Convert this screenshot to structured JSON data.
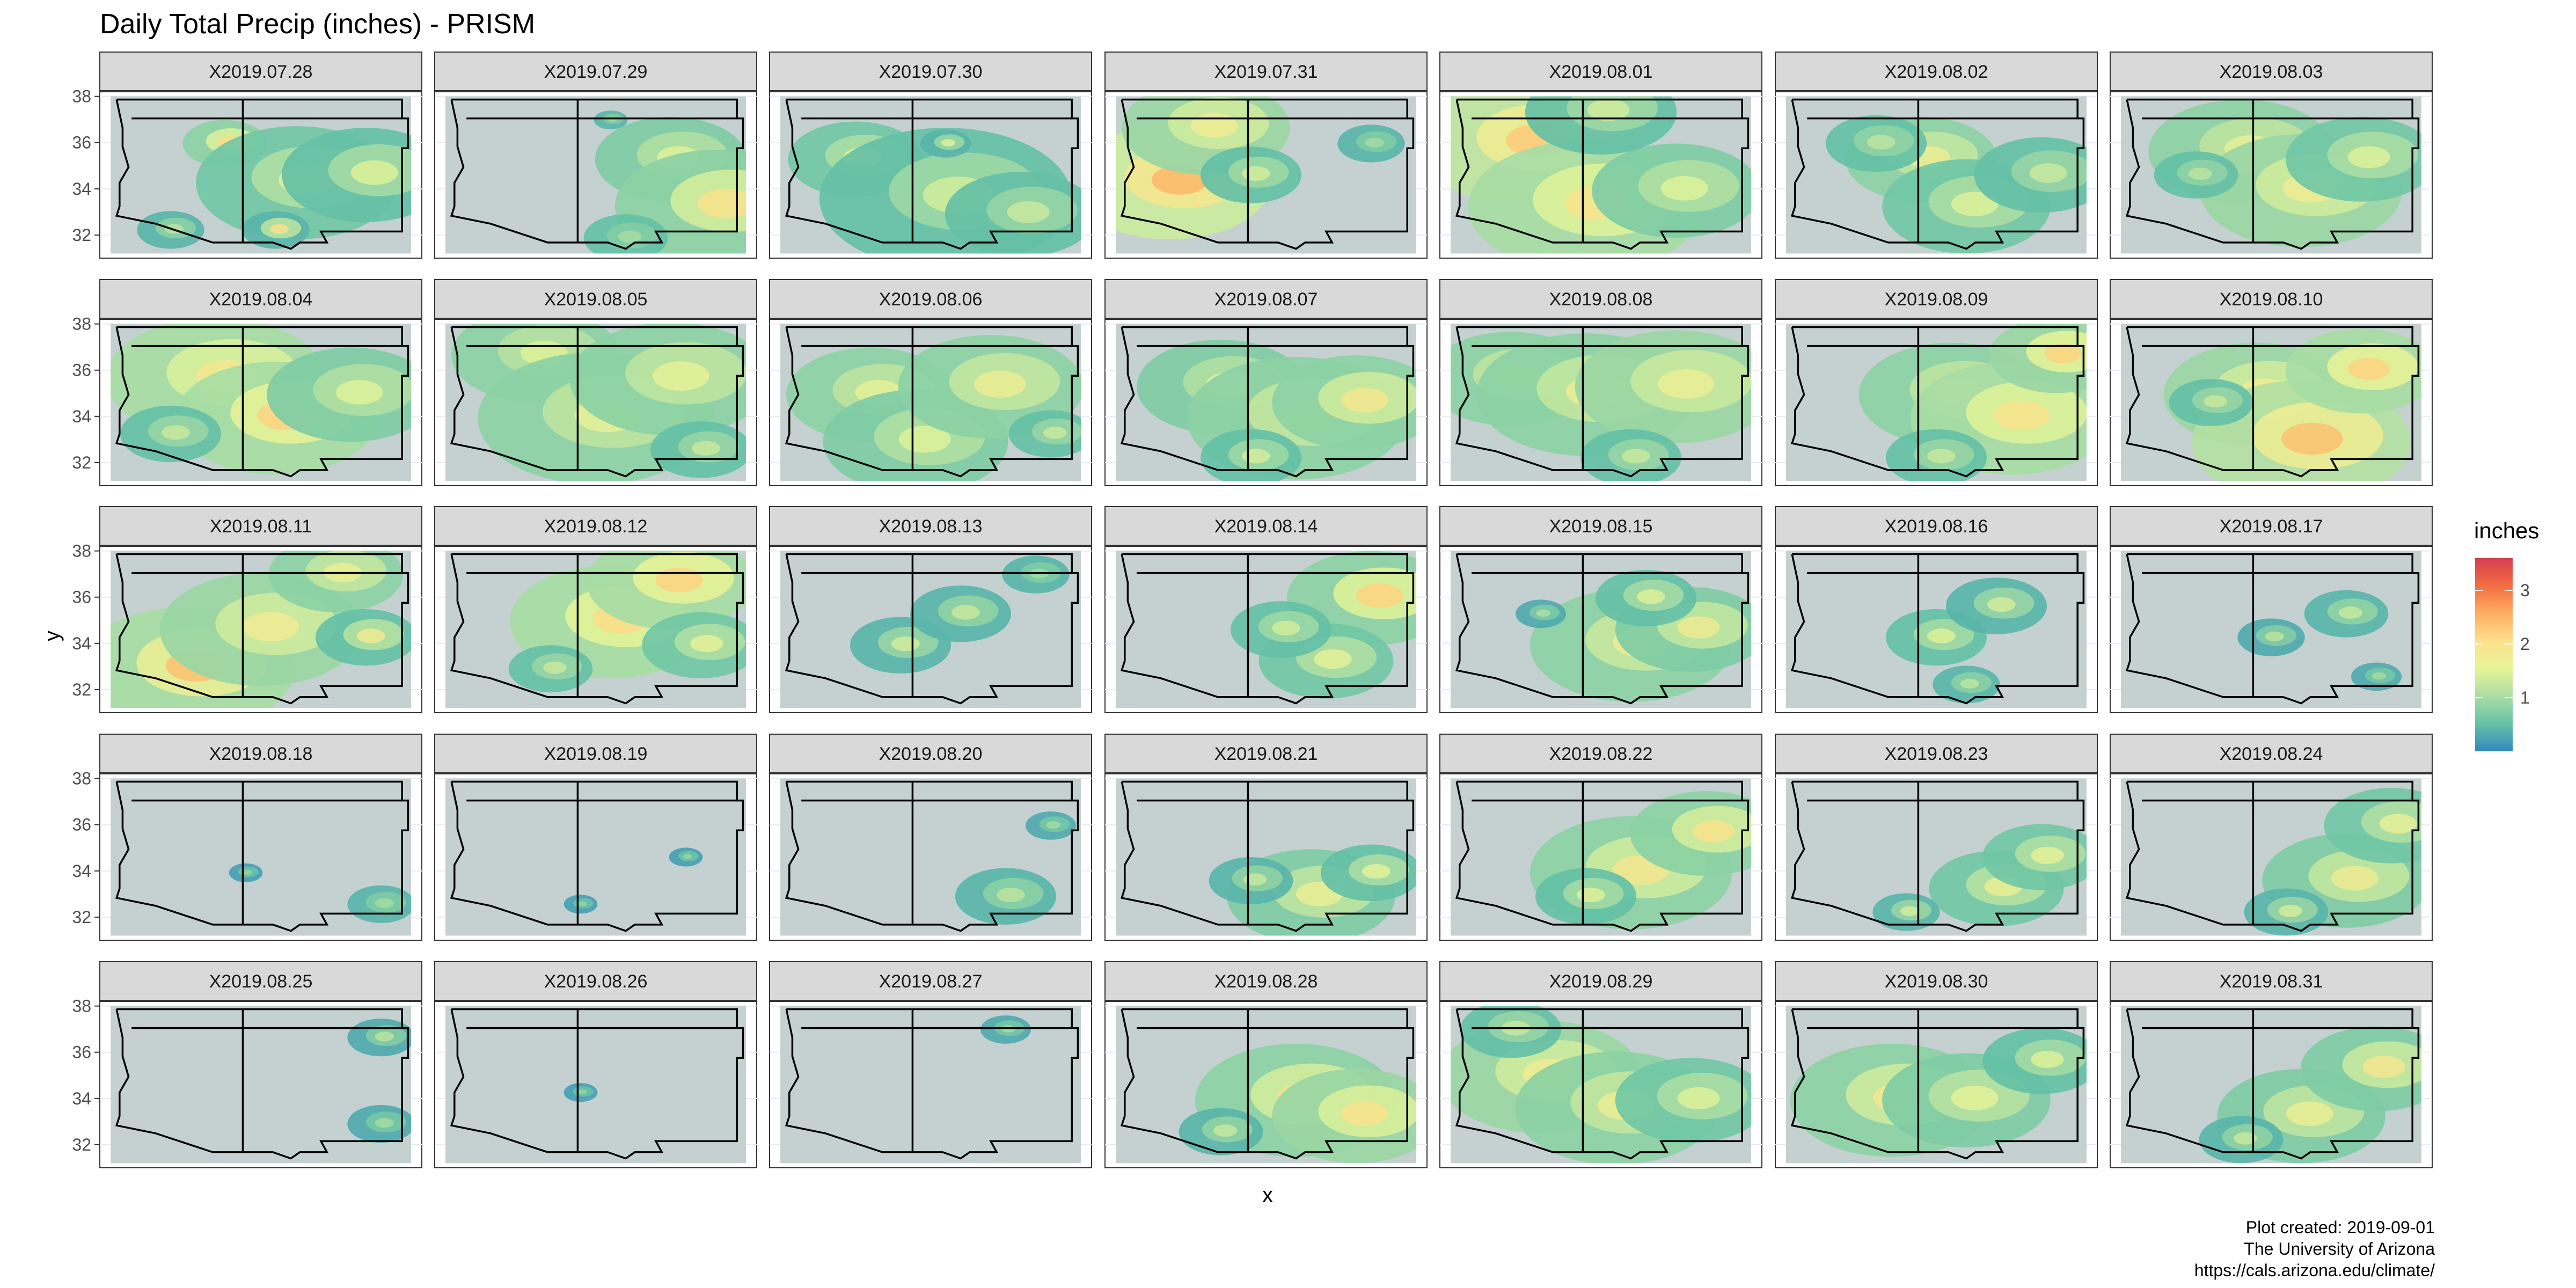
{
  "chart_data": {
    "type": "heatmap",
    "title": "Daily Total Precip (inches) - PRISM",
    "xlabel": "x",
    "ylabel": "y",
    "y_ticks": [
      32,
      34,
      36,
      38
    ],
    "ylim": [
      31,
      38.2
    ],
    "x_tick_labels_shown": false,
    "facets": [
      "X2019.07.28",
      "X2019.07.29",
      "X2019.07.30",
      "X2019.07.31",
      "X2019.08.01",
      "X2019.08.02",
      "X2019.08.03",
      "X2019.08.04",
      "X2019.08.05",
      "X2019.08.06",
      "X2019.08.07",
      "X2019.08.08",
      "X2019.08.09",
      "X2019.08.10",
      "X2019.08.11",
      "X2019.08.12",
      "X2019.08.13",
      "X2019.08.14",
      "X2019.08.15",
      "X2019.08.16",
      "X2019.08.17",
      "X2019.08.18",
      "X2019.08.19",
      "X2019.08.20",
      "X2019.08.21",
      "X2019.08.22",
      "X2019.08.23",
      "X2019.08.24",
      "X2019.08.25",
      "X2019.08.26",
      "X2019.08.27",
      "X2019.08.28",
      "X2019.08.29",
      "X2019.08.30",
      "X2019.08.31"
    ],
    "facet_rows": 5,
    "facet_cols": 7,
    "legend": {
      "title": "inches",
      "ticks": [
        1,
        2,
        3
      ],
      "range": [
        0,
        3.6
      ],
      "colors": [
        "#3288bd",
        "#66c2a5",
        "#abdda4",
        "#e6f598",
        "#fee08b",
        "#fdae61",
        "#f46d43",
        "#d53e4f"
      ],
      "position": "right"
    },
    "background_color": "#c5d1d1",
    "precip_blobs": [
      [
        [
          0.38,
          0.3,
          0.5,
          2.1,
          0.8
        ],
        [
          0.62,
          0.55,
          1.2,
          1.6,
          0.6
        ],
        [
          0.55,
          0.85,
          0.4,
          2.0,
          0.4
        ],
        [
          0.85,
          0.5,
          1.0,
          1.5,
          0.5
        ],
        [
          0.2,
          0.85,
          0.4,
          1.2,
          0.4
        ]
      ],
      [
        [
          0.75,
          0.4,
          0.9,
          1.5,
          0.7
        ],
        [
          0.9,
          0.7,
          1.2,
          2.0,
          0.8
        ],
        [
          0.55,
          0.15,
          0.2,
          1.0,
          0.4
        ],
        [
          0.6,
          0.9,
          0.5,
          1.0,
          0.5
        ]
      ],
      [
        [
          0.25,
          0.4,
          0.8,
          1.5,
          0.6
        ],
        [
          0.55,
          0.65,
          1.5,
          1.4,
          0.5
        ],
        [
          0.8,
          0.75,
          0.9,
          1.3,
          0.5
        ],
        [
          0.55,
          0.3,
          0.3,
          1.5,
          0.4
        ]
      ],
      [
        [
          0.18,
          0.55,
          1.2,
          2.5,
          1.3
        ],
        [
          0.3,
          0.2,
          1.0,
          1.8,
          0.9
        ],
        [
          0.45,
          0.5,
          0.6,
          1.4,
          0.5
        ],
        [
          0.85,
          0.3,
          0.4,
          1.0,
          0.4
        ]
      ],
      [
        [
          0.25,
          0.3,
          1.3,
          2.3,
          1.2
        ],
        [
          0.45,
          0.7,
          1.4,
          2.0,
          1.0
        ],
        [
          0.75,
          0.6,
          1.0,
          1.5,
          0.7
        ],
        [
          0.5,
          0.1,
          0.9,
          1.4,
          0.5
        ]
      ],
      [
        [
          0.45,
          0.4,
          0.9,
          1.7,
          0.8
        ],
        [
          0.6,
          0.7,
          1.0,
          1.5,
          0.6
        ],
        [
          0.85,
          0.5,
          0.8,
          1.3,
          0.5
        ],
        [
          0.3,
          0.3,
          0.6,
          1.2,
          0.5
        ]
      ],
      [
        [
          0.4,
          0.35,
          1.1,
          1.6,
          0.8
        ],
        [
          0.6,
          0.6,
          1.2,
          1.8,
          0.9
        ],
        [
          0.8,
          0.4,
          0.9,
          1.5,
          0.6
        ],
        [
          0.25,
          0.5,
          0.5,
          1.2,
          0.5
        ]
      ],
      [
        [
          0.35,
          0.35,
          1.3,
          1.9,
          1.0
        ],
        [
          0.55,
          0.6,
          1.2,
          2.2,
          1.0
        ],
        [
          0.8,
          0.45,
          1.0,
          1.5,
          0.7
        ],
        [
          0.2,
          0.7,
          0.6,
          1.3,
          0.5
        ]
      ],
      [
        [
          0.3,
          0.2,
          1.0,
          1.5,
          0.8
        ],
        [
          0.5,
          0.6,
          1.4,
          1.6,
          0.8
        ],
        [
          0.75,
          0.35,
          1.2,
          1.6,
          0.8
        ],
        [
          0.85,
          0.8,
          0.6,
          1.3,
          0.5
        ]
      ],
      [
        [
          0.3,
          0.45,
          1.0,
          1.6,
          0.8
        ],
        [
          0.45,
          0.75,
          1.1,
          1.5,
          0.7
        ],
        [
          0.7,
          0.4,
          1.1,
          1.7,
          0.8
        ],
        [
          0.9,
          0.7,
          0.5,
          1.3,
          0.5
        ]
      ],
      [
        [
          0.35,
          0.4,
          1.0,
          1.5,
          0.7
        ],
        [
          0.6,
          0.6,
          1.3,
          1.7,
          0.8
        ],
        [
          0.8,
          0.5,
          1.0,
          1.9,
          0.8
        ],
        [
          0.45,
          0.85,
          0.6,
          1.4,
          0.5
        ]
      ],
      [
        [
          0.2,
          0.35,
          1.0,
          1.6,
          0.8
        ],
        [
          0.45,
          0.45,
          1.3,
          1.7,
          0.8
        ],
        [
          0.75,
          0.4,
          1.2,
          1.7,
          0.9
        ],
        [
          0.6,
          0.85,
          0.6,
          1.3,
          0.5
        ]
      ],
      [
        [
          0.55,
          0.45,
          1.1,
          1.6,
          0.8
        ],
        [
          0.75,
          0.6,
          1.2,
          2.0,
          1.0
        ],
        [
          0.9,
          0.2,
          0.8,
          2.2,
          0.9
        ],
        [
          0.5,
          0.85,
          0.6,
          1.3,
          0.5
        ]
      ],
      [
        [
          0.45,
          0.45,
          1.1,
          1.8,
          0.9
        ],
        [
          0.6,
          0.75,
          1.3,
          2.4,
          1.1
        ],
        [
          0.8,
          0.3,
          0.9,
          2.2,
          1.0
        ],
        [
          0.3,
          0.5,
          0.5,
          1.3,
          0.5
        ]
      ],
      [
        [
          0.25,
          0.75,
          1.3,
          2.4,
          1.0
        ],
        [
          0.5,
          0.5,
          1.2,
          1.8,
          0.9
        ],
        [
          0.75,
          0.15,
          0.8,
          1.7,
          0.8
        ],
        [
          0.85,
          0.55,
          0.6,
          1.8,
          0.5
        ]
      ],
      [
        [
          0.55,
          0.45,
          1.2,
          2.1,
          1.0
        ],
        [
          0.75,
          0.2,
          1.0,
          2.2,
          1.0
        ],
        [
          0.85,
          0.6,
          0.7,
          1.6,
          0.6
        ],
        [
          0.35,
          0.75,
          0.5,
          1.3,
          0.5
        ]
      ],
      [
        [
          0.4,
          0.6,
          0.6,
          1.4,
          0.4
        ],
        [
          0.6,
          0.4,
          0.6,
          1.3,
          0.4
        ],
        [
          0.85,
          0.15,
          0.4,
          1.0,
          0.4
        ]
      ],
      [
        [
          0.85,
          0.3,
          1.0,
          2.2,
          0.8
        ],
        [
          0.7,
          0.7,
          0.8,
          1.6,
          0.6
        ],
        [
          0.55,
          0.5,
          0.6,
          1.4,
          0.5
        ]
      ],
      [
        [
          0.6,
          0.6,
          1.2,
          1.8,
          0.8
        ],
        [
          0.8,
          0.5,
          0.9,
          1.8,
          0.7
        ],
        [
          0.65,
          0.3,
          0.6,
          1.5,
          0.5
        ],
        [
          0.3,
          0.4,
          0.3,
          1.1,
          0.3
        ]
      ],
      [
        [
          0.5,
          0.55,
          0.6,
          1.5,
          0.5
        ],
        [
          0.7,
          0.35,
          0.6,
          1.4,
          0.4
        ],
        [
          0.6,
          0.85,
          0.4,
          1.2,
          0.4
        ]
      ],
      [
        [
          0.75,
          0.4,
          0.5,
          1.3,
          0.4
        ],
        [
          0.5,
          0.55,
          0.4,
          1.2,
          0.3
        ],
        [
          0.85,
          0.8,
          0.3,
          1.0,
          0.3
        ]
      ],
      [
        [
          0.9,
          0.8,
          0.4,
          1.0,
          0.4
        ],
        [
          0.45,
          0.6,
          0.2,
          0.9,
          0.2
        ]
      ],
      [
        [
          0.8,
          0.5,
          0.2,
          0.9,
          0.2
        ],
        [
          0.45,
          0.8,
          0.2,
          0.9,
          0.2
        ]
      ],
      [
        [
          0.75,
          0.75,
          0.6,
          1.2,
          0.4
        ],
        [
          0.9,
          0.3,
          0.3,
          1.0,
          0.3
        ]
      ],
      [
        [
          0.65,
          0.75,
          1.0,
          1.7,
          0.7
        ],
        [
          0.85,
          0.6,
          0.6,
          1.6,
          0.5
        ],
        [
          0.45,
          0.65,
          0.5,
          1.3,
          0.4
        ]
      ],
      [
        [
          0.6,
          0.6,
          1.2,
          1.9,
          0.8
        ],
        [
          0.85,
          0.35,
          0.9,
          2.0,
          0.8
        ],
        [
          0.45,
          0.75,
          0.6,
          1.5,
          0.5
        ]
      ],
      [
        [
          0.7,
          0.7,
          0.8,
          1.7,
          0.6
        ],
        [
          0.85,
          0.5,
          0.7,
          1.6,
          0.6
        ],
        [
          0.4,
          0.85,
          0.4,
          1.4,
          0.4
        ]
      ],
      [
        [
          0.75,
          0.65,
          1.0,
          1.8,
          0.7
        ],
        [
          0.9,
          0.3,
          0.8,
          1.6,
          0.6
        ],
        [
          0.55,
          0.85,
          0.5,
          1.4,
          0.4
        ]
      ],
      [
        [
          0.9,
          0.2,
          0.4,
          1.2,
          0.3
        ],
        [
          0.9,
          0.75,
          0.4,
          1.0,
          0.3
        ]
      ],
      [
        [
          0.45,
          0.55,
          0.2,
          0.9,
          0.2
        ]
      ],
      [
        [
          0.75,
          0.15,
          0.3,
          1.0,
          0.3
        ]
      ],
      [
        [
          0.6,
          0.6,
          1.2,
          2.0,
          0.8
        ],
        [
          0.8,
          0.7,
          1.0,
          2.0,
          0.9
        ],
        [
          0.35,
          0.8,
          0.5,
          1.3,
          0.4
        ]
      ],
      [
        [
          0.3,
          0.45,
          1.2,
          1.8,
          0.9
        ],
        [
          0.55,
          0.65,
          1.2,
          1.7,
          0.8
        ],
        [
          0.8,
          0.6,
          0.9,
          1.5,
          0.6
        ],
        [
          0.2,
          0.15,
          0.6,
          1.3,
          0.5
        ]
      ],
      [
        [
          0.35,
          0.6,
          1.2,
          1.9,
          0.8
        ],
        [
          0.6,
          0.6,
          1.0,
          1.6,
          0.7
        ],
        [
          0.85,
          0.35,
          0.7,
          1.5,
          0.5
        ]
      ],
      [
        [
          0.6,
          0.7,
          1.0,
          1.7,
          0.7
        ],
        [
          0.85,
          0.4,
          0.9,
          1.9,
          0.7
        ],
        [
          0.4,
          0.85,
          0.5,
          1.3,
          0.4
        ]
      ]
    ]
  },
  "caption": {
    "line1": "Plot created: 2019-09-01",
    "line2": "The University of Arizona",
    "line3": "https://cals.arizona.edu/climate/"
  }
}
